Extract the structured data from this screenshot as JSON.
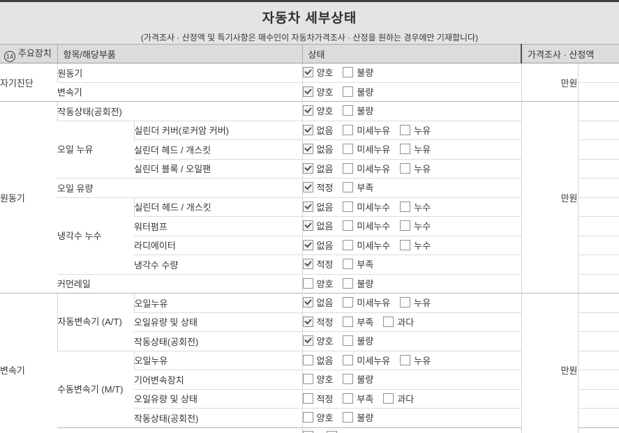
{
  "page": {
    "title": "자동차 세부상태",
    "subtitle": "(가격조사 · 산정액 및 특기사항은 매수인이 자동차가격조사 · 산정을 원하는 경우에만 기재합니다)"
  },
  "table": {
    "header": {
      "col1_num": "14",
      "col1": "주요장치",
      "col2": "항목/해당부품",
      "col3": "상태",
      "col4": "가격조사 · 산정액"
    },
    "rows": [
      {
        "group": "자기진단",
        "group_rowspan": 2,
        "price": "만원",
        "price_rowspan": 2,
        "item": "원동기",
        "item_full": true,
        "options": [
          {
            "label": "양호",
            "checked": true
          },
          {
            "label": "불량",
            "checked": false
          }
        ]
      },
      {
        "item": "변속기",
        "item_full": true,
        "options": [
          {
            "label": "양호",
            "checked": true
          },
          {
            "label": "불량",
            "checked": false
          }
        ]
      },
      {
        "group": "원동기",
        "group_rowspan": 10,
        "price": "만원",
        "price_rowspan": 10,
        "group_boundary": true,
        "item": "작동상태(공회전)",
        "item_full": true,
        "options": [
          {
            "label": "양호",
            "checked": true
          },
          {
            "label": "불량",
            "checked": false
          }
        ]
      },
      {
        "subgroup": "오일 누유",
        "subgroup_rowspan": 3,
        "item": "실린더 커버(로커암 커버)",
        "options": [
          {
            "label": "없음",
            "checked": true
          },
          {
            "label": "미세누유",
            "checked": false
          },
          {
            "label": "누유",
            "checked": false
          }
        ]
      },
      {
        "item": "실린더 헤드 / 개스킷",
        "options": [
          {
            "label": "없음",
            "checked": true
          },
          {
            "label": "미세누유",
            "checked": false
          },
          {
            "label": "누유",
            "checked": false
          }
        ]
      },
      {
        "item": "실린더 블록 / 오일팬",
        "options": [
          {
            "label": "없음",
            "checked": true
          },
          {
            "label": "미세누유",
            "checked": false
          },
          {
            "label": "누유",
            "checked": false
          }
        ]
      },
      {
        "item": "오일 유량",
        "item_full": true,
        "options": [
          {
            "label": "적정",
            "checked": true
          },
          {
            "label": "부족",
            "checked": false
          }
        ]
      },
      {
        "subgroup": "냉각수\n누수",
        "subgroup_rowspan": 4,
        "item": "실린더 헤드 / 개스킷",
        "options": [
          {
            "label": "없음",
            "checked": true
          },
          {
            "label": "미세누수",
            "checked": false
          },
          {
            "label": "누수",
            "checked": false
          }
        ]
      },
      {
        "item": "워터펌프",
        "options": [
          {
            "label": "없음",
            "checked": true
          },
          {
            "label": "미세누수",
            "checked": false
          },
          {
            "label": "누수",
            "checked": false
          }
        ]
      },
      {
        "item": "라디에이터",
        "options": [
          {
            "label": "없음",
            "checked": true
          },
          {
            "label": "미세누수",
            "checked": false
          },
          {
            "label": "누수",
            "checked": false
          }
        ]
      },
      {
        "item": "냉각수 수량",
        "options": [
          {
            "label": "적정",
            "checked": true
          },
          {
            "label": "부족",
            "checked": false
          }
        ]
      },
      {
        "item": "커먼레일",
        "item_full": true,
        "options": [
          {
            "label": "양호",
            "checked": false
          },
          {
            "label": "불량",
            "checked": false
          }
        ]
      },
      {
        "group": "변속기",
        "group_rowspan": 8,
        "price": "만원",
        "price_rowspan": 8,
        "group_boundary": true,
        "subgroup": "자동변속기\n(A/T)",
        "subgroup_rowspan": 3,
        "item": "오일누유",
        "options": [
          {
            "label": "없음",
            "checked": true
          },
          {
            "label": "미세누유",
            "checked": false
          },
          {
            "label": "누유",
            "checked": false
          }
        ]
      },
      {
        "item": "오일유량 및 상태",
        "options": [
          {
            "label": "적정",
            "checked": true
          },
          {
            "label": "부족",
            "checked": false
          },
          {
            "label": "과다",
            "checked": false
          }
        ]
      },
      {
        "item": "작동상태(공회전)",
        "options": [
          {
            "label": "양호",
            "checked": true
          },
          {
            "label": "불량",
            "checked": false
          }
        ]
      },
      {
        "subgroup": "수동변속기\n(M/T)",
        "subgroup_rowspan": 4,
        "item": "오일누유",
        "options": [
          {
            "label": "없음",
            "checked": false
          },
          {
            "label": "미세누유",
            "checked": false
          },
          {
            "label": "누유",
            "checked": false
          }
        ]
      },
      {
        "item": "기어변속장치",
        "options": [
          {
            "label": "양호",
            "checked": false
          },
          {
            "label": "불량",
            "checked": false
          }
        ]
      },
      {
        "item": "오일유량 및 상태",
        "options": [
          {
            "label": "적정",
            "checked": false
          },
          {
            "label": "부족",
            "checked": false
          },
          {
            "label": "과다",
            "checked": false
          }
        ]
      },
      {
        "item": "작동상태(공회전)",
        "options": [
          {
            "label": "양호",
            "checked": false
          },
          {
            "label": "불량",
            "checked": false
          }
        ]
      },
      {
        "item": "",
        "item_full": true,
        "group_boundary": true,
        "partial": true,
        "options": [
          {
            "label": "",
            "checked": false
          },
          {
            "label": "",
            "checked": false
          }
        ]
      }
    ]
  },
  "colors": {
    "top_border": "#3b4046",
    "band_bg": "#e3e4e3",
    "header_bg": "#dbdcdb",
    "bold_divider": "#4a4e52",
    "check": "#4e5052"
  }
}
